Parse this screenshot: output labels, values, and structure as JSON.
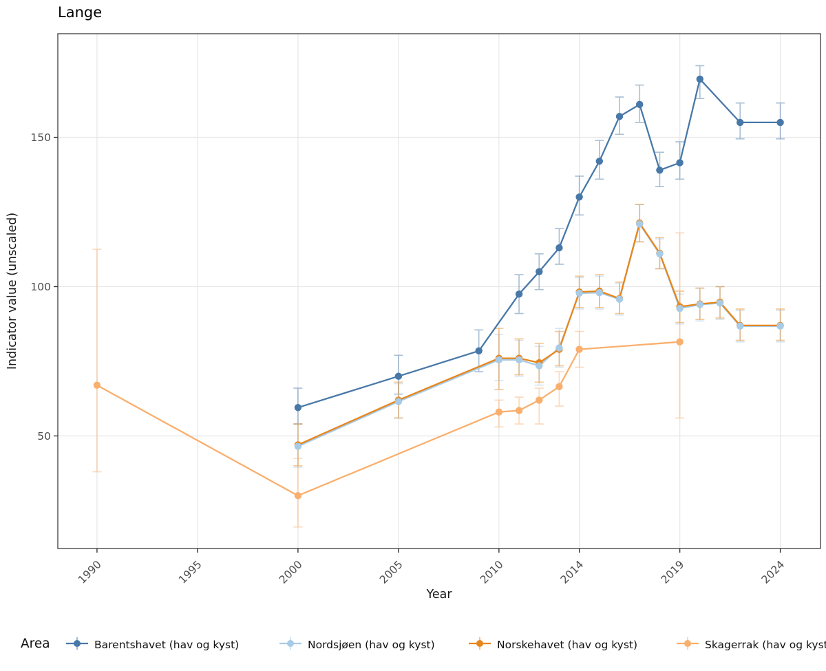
{
  "title": "Lange",
  "legend": {
    "title": "Area",
    "items": [
      {
        "label": "Barentshavet (hav og kyst)",
        "color": "#4878a8"
      },
      {
        "label": "Nordsjøen (hav og kyst)",
        "color": "#a8cbe6"
      },
      {
        "label": "Norskehavet (hav og kyst)",
        "color": "#e8861c"
      },
      {
        "label": "Skagerrak (hav og kyst)",
        "color": "#f9af6d"
      }
    ]
  },
  "chart_data": {
    "type": "line",
    "title": "Lange",
    "xlabel": "Year",
    "ylabel": "Indicator value (unscaled)",
    "x_ticks": [
      1990,
      1995,
      2000,
      2005,
      2010,
      2014,
      2019,
      2024
    ],
    "y_ticks": [
      50,
      100,
      150
    ],
    "xlim": [
      1988.05,
      2026.0
    ],
    "ylim": [
      12.3,
      184.7
    ],
    "grid": "major",
    "legend_title": "Area",
    "legend_position": "bottom",
    "point_format": "[year, value, err_low, err_high]",
    "series": [
      {
        "name": "Barentshavet (hav og kyst)",
        "color": "#4878a8",
        "points": [
          [
            2000,
            59.5,
            54,
            66
          ],
          [
            2005,
            70,
            64,
            77
          ],
          [
            2009,
            78.5,
            71.5,
            85.5
          ],
          [
            2011,
            97.5,
            91,
            104
          ],
          [
            2012,
            105,
            99,
            111
          ],
          [
            2013,
            113,
            107.5,
            119.5
          ],
          [
            2014,
            130,
            124,
            137
          ],
          [
            2015,
            142,
            136,
            149
          ],
          [
            2016,
            157,
            151,
            163.5
          ],
          [
            2017,
            161,
            155,
            167.5
          ],
          [
            2018,
            139,
            133.5,
            145
          ],
          [
            2019,
            141.5,
            136,
            148.5
          ],
          [
            2020,
            169.5,
            163,
            174
          ],
          [
            2022,
            155,
            149.5,
            161.5
          ],
          [
            2024,
            155,
            149.5,
            161.5
          ]
        ]
      },
      {
        "name": "Nordsjøen (hav og kyst)",
        "color": "#a8cbe6",
        "points": [
          [
            2000,
            46.5,
            39.5,
            54
          ],
          [
            2005,
            61.5,
            56,
            67.5
          ],
          [
            2010,
            75.5,
            68.5,
            84
          ],
          [
            2011,
            75.5,
            70,
            82
          ],
          [
            2012,
            73.5,
            67,
            80
          ],
          [
            2013,
            79.5,
            73,
            86
          ],
          [
            2014,
            97.8,
            92.5,
            103
          ],
          [
            2015,
            98,
            92.5,
            103.5
          ],
          [
            2016,
            95.8,
            90.5,
            101
          ],
          [
            2017,
            121,
            115,
            127.5
          ],
          [
            2018,
            111,
            106,
            116
          ],
          [
            2019,
            92.7,
            87.5,
            97.5
          ],
          [
            2020,
            94,
            88.5,
            99.5
          ],
          [
            2021,
            94.5,
            89,
            100
          ],
          [
            2022,
            86.8,
            81.5,
            92
          ],
          [
            2024,
            86.8,
            81.5,
            92
          ]
        ]
      },
      {
        "name": "Norskehavet (hav og kyst)",
        "color": "#e8861c",
        "points": [
          [
            2000,
            47,
            40,
            54
          ],
          [
            2005,
            62,
            56,
            68
          ],
          [
            2010,
            76,
            65.5,
            86
          ],
          [
            2011,
            76,
            70.5,
            82.5
          ],
          [
            2012,
            74.5,
            68,
            81
          ],
          [
            2013,
            79,
            73.5,
            85
          ],
          [
            2014,
            98.2,
            93,
            103.5
          ],
          [
            2015,
            98.5,
            93,
            104
          ],
          [
            2016,
            96,
            91,
            101.5
          ],
          [
            2017,
            121.3,
            115,
            127.5
          ],
          [
            2018,
            111.2,
            106,
            116.5
          ],
          [
            2019,
            93.3,
            88,
            98.5
          ],
          [
            2020,
            94.2,
            89,
            99.5
          ],
          [
            2021,
            94.8,
            89.5,
            100
          ],
          [
            2022,
            87,
            82,
            92.5
          ],
          [
            2024,
            87,
            82,
            92.5
          ]
        ]
      },
      {
        "name": "Skagerrak (hav og kyst)",
        "color": "#f9af6d",
        "points": [
          [
            1990,
            67,
            38,
            112.5
          ],
          [
            2000,
            30,
            19.5,
            42.5
          ],
          [
            2010,
            58,
            53,
            62
          ],
          [
            2011,
            58.5,
            54,
            63
          ],
          [
            2012,
            62,
            54,
            66
          ],
          [
            2013,
            66.5,
            60,
            71.5
          ],
          [
            2014,
            79,
            73,
            85
          ],
          [
            2019,
            81.5,
            56,
            118
          ]
        ]
      }
    ]
  }
}
